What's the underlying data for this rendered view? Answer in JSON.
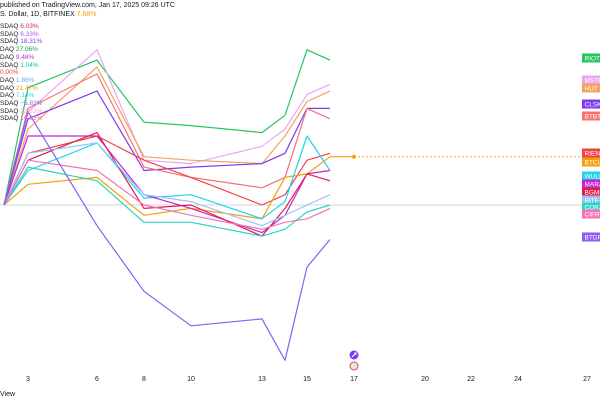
{
  "header": {
    "text": "published on TradingView.com, Jan 17, 2025 09:26 UTC",
    "symbol": "S. Dollar, 1D, BITFINEX",
    "change": "7.68%",
    "change_color": "#f59e0b"
  },
  "legend_rows": [
    {
      "prefix": "SDAQ",
      "value": "6.03%",
      "color": "#e11d48"
    },
    {
      "prefix": "SDAQ",
      "value": "6.33%",
      "color": "#a855f7"
    },
    {
      "prefix": "SDAQ",
      "value": "18.31%",
      "color": "#7c3aed"
    },
    {
      "prefix": "DAQ",
      "value": "27.06%",
      "color": "#16a34a"
    },
    {
      "prefix": "DAQ",
      "value": "9.48%",
      "color": "#c026d3"
    },
    {
      "prefix": "SDAQ",
      "value": "1.04%",
      "color": "#14b8a6"
    },
    {
      "prefix": "",
      "value": "0.00%",
      "color": "#ef4444"
    },
    {
      "prefix": "DAQ",
      "value": "1.86%",
      "color": "#60a5fa"
    },
    {
      "prefix": "DAQ",
      "value": "21.47%",
      "color": "#f59e0b"
    },
    {
      "prefix": "DAQ",
      "value": "7.14%",
      "color": "#22d3ee"
    },
    {
      "prefix": "SDAQ",
      "value": "−5.82%",
      "color": "#8b5cf6"
    },
    {
      "prefix": "SDAQ",
      "value": "22.33%",
      "color": "#f9a8d4"
    },
    {
      "prefix": "SDAQ",
      "value": "16.33%",
      "color": "#f472b6"
    }
  ],
  "footer": {
    "text": "View"
  },
  "chart_data": {
    "type": "line",
    "x": [
      "Jan 2",
      "Jan 3",
      "Jan 6",
      "Jan 8",
      "Jan 10",
      "Jan 13",
      "Jan 14",
      "Jan 15",
      "Jan 16"
    ],
    "x_ticks": [
      "3",
      "6",
      "8",
      "10",
      "13",
      "15",
      "17",
      "20",
      "22",
      "24",
      "27"
    ],
    "zero_line": true,
    "grid": false,
    "series": [
      {
        "name": "RIOT",
        "color": "#22c55e",
        "values": [
          0,
          34,
          42,
          24,
          23,
          21,
          26,
          45,
          42
        ]
      },
      {
        "name": "MSTR",
        "color": "#e9a6f2",
        "values": [
          0,
          27,
          45,
          13,
          12,
          17,
          22,
          32,
          35
        ]
      },
      {
        "name": "HUT",
        "color": "#f4a261",
        "values": [
          0,
          22,
          40,
          14,
          13,
          12,
          20,
          30,
          33
        ]
      },
      {
        "name": "CLSK",
        "color": "#7c3aed",
        "values": [
          0,
          25,
          33,
          10,
          11,
          12,
          15,
          28,
          28
        ]
      },
      {
        "name": "BTBT",
        "color": "#f87171",
        "values": [
          0,
          28,
          38,
          11,
          8,
          5,
          8,
          28,
          25
        ]
      },
      {
        "name": "RIEN",
        "color": "#ef4444",
        "values": [
          0,
          15,
          20,
          13,
          8,
          0,
          3,
          13,
          15
        ]
      },
      {
        "name": "BTCUSD",
        "color": "#f59e0b",
        "values": [
          0,
          6,
          8,
          -3,
          -1,
          -4,
          8,
          9,
          14
        ]
      },
      {
        "name": "WULF",
        "color": "#22d3ee",
        "values": [
          0,
          10,
          18,
          2,
          3,
          -4,
          1,
          20,
          10
        ]
      },
      {
        "name": "MARA",
        "color": "#c026d3",
        "values": [
          0,
          20,
          20,
          3,
          -1,
          -8,
          -3,
          9,
          10
        ]
      },
      {
        "name": "BGMI",
        "color": "#e11d48",
        "values": [
          0,
          13,
          21,
          -1,
          0,
          -9,
          -1,
          9,
          7
        ]
      },
      {
        "name": "BITF",
        "color": "#93c5fd",
        "values": [
          0,
          15,
          18,
          3,
          1,
          -6,
          -3,
          0,
          3
        ]
      },
      {
        "name": "CORZ",
        "color": "#2dd4bf",
        "values": [
          0,
          11,
          7,
          -5,
          -5,
          -9,
          -7,
          -2,
          0
        ]
      },
      {
        "name": "CIFR",
        "color": "#f472b6",
        "values": [
          0,
          13,
          10,
          0,
          -3,
          -7,
          -5,
          -4,
          -1
        ]
      },
      {
        "name": "BTDR",
        "color": "#8b5cf6",
        "values": [
          0,
          27,
          -6,
          -25,
          -35,
          -33,
          -45,
          -18,
          -10
        ]
      }
    ],
    "markers": [
      {
        "series": "BTCUSD",
        "x": "Jan 17",
        "value": 14
      }
    ]
  }
}
